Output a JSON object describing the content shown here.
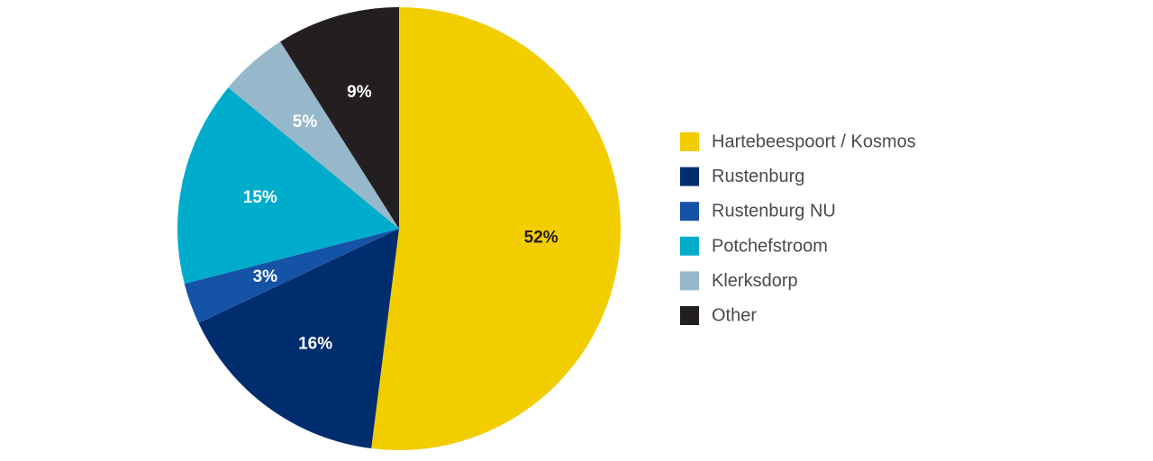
{
  "chart_data": {
    "type": "pie",
    "slices": [
      {
        "name": "Hartebeespoort / Kosmos",
        "value": 52,
        "label": "52%",
        "color": "#f2cd00",
        "label_color": "#231f20"
      },
      {
        "name": "Rustenburg",
        "value": 16,
        "label": "16%",
        "color": "#002d6e",
        "label_color": "#ffffff"
      },
      {
        "name": "Rustenburg NU",
        "value": 3,
        "label": "3%",
        "color": "#1553a6",
        "label_color": "#ffffff"
      },
      {
        "name": "Potchefstroom",
        "value": 15,
        "label": "15%",
        "color": "#00accb",
        "label_color": "#ffffff"
      },
      {
        "name": "Klerksdorp",
        "value": 5,
        "label": "5%",
        "color": "#96b8ca",
        "label_color": "#ffffff"
      },
      {
        "name": "Other",
        "value": 9,
        "label": "9%",
        "color": "#231f20",
        "label_color": "#ffffff"
      }
    ],
    "legend_position": "right",
    "start": "top",
    "direction": "clockwise"
  }
}
